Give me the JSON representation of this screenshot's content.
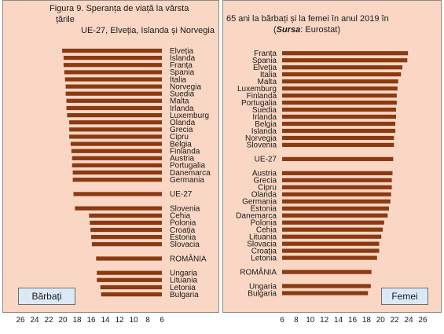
{
  "figure": {
    "title_left_line1": "Figura 9. Speranța de viață la vârsta",
    "title_left_word2": "țările",
    "title_left_line2": "UE-27, Elveția, Islanda și Norvegia",
    "title_right_line1": "65 ani la bărbați și la femei în anul 2019 în",
    "source_label": "Sursa",
    "source_rest": ": Eurostat)",
    "source_open": "("
  },
  "colors": {
    "panel_bg": "#f9d7c4",
    "bar": "#8b3a12",
    "legend_bg": "#dbe8f6"
  },
  "chart_data": [
    {
      "type": "bar",
      "orientation": "horizontal",
      "axis_direction": "reversed",
      "xlim": [
        6,
        26
      ],
      "xticks": [
        "26",
        "24",
        "22",
        "20",
        "18",
        "16",
        "14",
        "12",
        "10",
        "8",
        "6"
      ],
      "legend": "Bărbați",
      "categories": [
        "Elveția",
        "Islanda",
        "Franța",
        "Spania",
        "Italia",
        "Norvegia",
        "Suedia",
        "Malta",
        "Irlanda",
        "Luxemburg",
        "Olanda",
        "Grecia",
        "Cipru",
        "Belgia",
        "Finlanda",
        "Austria",
        "Portugalia",
        "Danemarca",
        "Germania",
        "",
        "UE-27",
        "",
        "Slovenia",
        "Cehia",
        "Polonia",
        "Croația",
        "Estonia",
        "Slovacia",
        "",
        "ROMÂNIA",
        "",
        "Ungaria",
        "Lituania",
        "Letonia",
        "Bulgaria"
      ],
      "values": [
        20.1,
        19.9,
        19.9,
        19.8,
        19.7,
        19.6,
        19.6,
        19.5,
        19.5,
        19.4,
        19.1,
        19.1,
        19.1,
        18.9,
        18.8,
        18.7,
        18.7,
        18.6,
        18.6,
        null,
        18.5,
        null,
        18.3,
        16.3,
        16.2,
        16.1,
        16.0,
        15.9,
        null,
        15.3,
        null,
        15.2,
        15.2,
        14.7,
        14.6
      ]
    },
    {
      "type": "bar",
      "orientation": "horizontal",
      "xlim": [
        6,
        26
      ],
      "xticks": [
        "6",
        "8",
        "10",
        "12",
        "14",
        "16",
        "18",
        "20",
        "22",
        "24",
        "26"
      ],
      "legend": "Femei",
      "categories": [
        "Franța",
        "Spania",
        "Elveția",
        "Italia",
        "Malta",
        "Luxemburg",
        "Finlanda",
        "Portugalia",
        "Suedia",
        "Irlanda",
        "Belgia",
        "Islanda",
        "Norvegia",
        "Slovenia",
        "",
        "UE-27",
        "",
        "Austria",
        "Grecia",
        "Cipru",
        "Olanda",
        "Germania",
        "Estonia",
        "Danemarca",
        "Polonia",
        "Cehia",
        "Lituania",
        "Slovacia",
        "Croația",
        "Letonia",
        "",
        "ROMÂNIA",
        "",
        "Ungaria",
        "Bulgaria"
      ],
      "values": [
        23.9,
        23.8,
        23.1,
        22.9,
        22.5,
        22.4,
        22.3,
        22.3,
        22.2,
        22.2,
        22.1,
        22.1,
        21.9,
        21.9,
        null,
        21.8,
        null,
        21.7,
        21.6,
        21.6,
        21.5,
        21.4,
        21.2,
        21.0,
        20.5,
        20.3,
        20.1,
        19.8,
        19.8,
        19.5,
        null,
        18.7,
        null,
        18.6,
        18.2
      ]
    }
  ]
}
